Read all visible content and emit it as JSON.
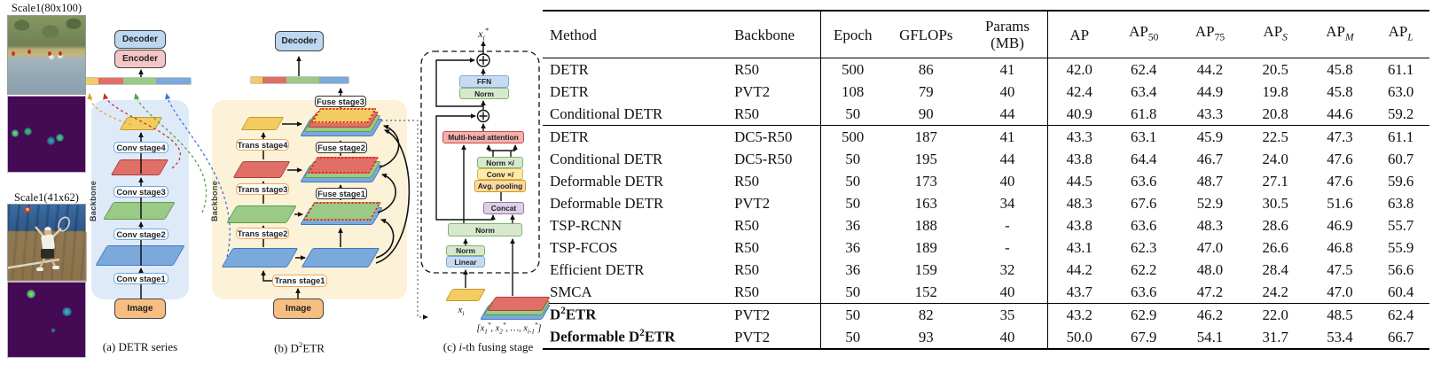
{
  "figure": {
    "examples": [
      {
        "label": "Scale1(80x100)"
      },
      {
        "label": "Scale1(41x62)"
      }
    ],
    "diagram_a": {
      "caption": "(a) DETR series",
      "decoder": "Decoder",
      "encoder": "Encoder",
      "backbone": "Backbone",
      "stages": [
        "Conv stage4",
        "Conv stage3",
        "Conv stage2",
        "Conv stage1"
      ],
      "image": "Image"
    },
    "diagram_b": {
      "caption": [
        "(b) D",
        {
          "sup": "2"
        },
        "ETR"
      ],
      "decoder": "Decoder",
      "backbone": "Backbone",
      "trans_stages": [
        "Trans stage4",
        "Trans stage3",
        "Trans stage2",
        "Trans stage1"
      ],
      "fuse_stages": [
        "Fuse stage3",
        "Fuse stage2",
        "Fuse stage1"
      ],
      "image": "Image"
    },
    "diagram_c": {
      "caption": [
        "(c) ",
        {
          "i": "i"
        },
        "-th fusing stage"
      ],
      "output": [
        {
          "i": "x"
        },
        {
          "sub": "i",
          "i": true
        },
        {
          "sup": "*"
        }
      ],
      "ffn": "FFN",
      "norm": "Norm",
      "mha": "Multi-head attention",
      "norm_i": [
        "Norm × ",
        {
          "i": "i"
        }
      ],
      "conv_i": [
        "Conv × ",
        {
          "i": "i"
        }
      ],
      "avg": "Avg. pooling",
      "concat": "Concat",
      "norm_wide": "Norm",
      "norm2": "Norm",
      "linear": "Linear",
      "input": [
        {
          "i": "x"
        },
        {
          "sub": "i",
          "i": true
        }
      ],
      "stack": [
        "[",
        {
          "i": "x"
        },
        {
          "sub": "1"
        },
        {
          "sup": "*"
        },
        ", ",
        {
          "i": "x"
        },
        {
          "sub": "2"
        },
        {
          "sup": "*"
        },
        ", …, ",
        {
          "i": "x"
        },
        {
          "sub": "i-1",
          "i": true
        },
        {
          "sup": "*"
        },
        "]"
      ]
    },
    "colors": {
      "yellow": "#F2CC60",
      "red": "#E06F68",
      "green": "#9BC986",
      "blue": "#7BA9DC",
      "panel_a_bg": "#DEEAF8",
      "panel_b_bg": "#FBF2D8",
      "heatmap_bg": "#440A54"
    }
  },
  "table": {
    "headers": [
      {
        "name": "method",
        "label": "Method"
      },
      {
        "name": "backbone",
        "label": "Backbone"
      },
      {
        "name": "epoch",
        "label": "Epoch"
      },
      {
        "name": "gflops",
        "label": "GFLOPs"
      },
      {
        "name": "params",
        "label": [
          "Params",
          {
            "br": true
          },
          "(MB)"
        ]
      },
      {
        "name": "ap",
        "label": "AP"
      },
      {
        "name": "ap50",
        "label": [
          "AP",
          {
            "sub": "50"
          }
        ]
      },
      {
        "name": "ap75",
        "label": [
          "AP",
          {
            "sub": "75"
          }
        ]
      },
      {
        "name": "aps",
        "label": [
          "AP",
          {
            "sub": "S",
            "i": true
          }
        ]
      },
      {
        "name": "apm",
        "label": [
          "AP",
          {
            "sub": "M",
            "i": true
          }
        ]
      },
      {
        "name": "apl",
        "label": [
          "AP",
          {
            "sub": "L",
            "i": true
          }
        ]
      }
    ],
    "groups": [
      {
        "rows": [
          {
            "cells": [
              "DETR",
              "R50",
              "500",
              "86",
              "41",
              "42.0",
              "62.4",
              "44.2",
              "20.5",
              "45.8",
              "61.1"
            ]
          },
          {
            "cells": [
              "DETR",
              "PVT2",
              "108",
              "79",
              "40",
              "42.4",
              "63.4",
              "44.9",
              "19.8",
              "45.8",
              "63.0"
            ]
          },
          {
            "cells": [
              "Conditional DETR",
              "R50",
              "50",
              "90",
              "44",
              "40.9",
              "61.8",
              "43.3",
              "20.8",
              "44.6",
              "59.2"
            ]
          }
        ]
      },
      {
        "rows": [
          {
            "cells": [
              "DETR",
              "DC5-R50",
              "500",
              "187",
              "41",
              "43.3",
              "63.1",
              "45.9",
              "22.5",
              "47.3",
              "61.1"
            ]
          },
          {
            "cells": [
              "Conditional DETR",
              "DC5-R50",
              "50",
              "195",
              "44",
              "43.8",
              "64.4",
              "46.7",
              "24.0",
              "47.6",
              "60.7"
            ]
          },
          {
            "cells": [
              "Deformable DETR",
              "R50",
              "50",
              "173",
              "40",
              "44.5",
              "63.6",
              "48.7",
              "27.1",
              "47.6",
              "59.6"
            ]
          },
          {
            "cells": [
              "Deformable DETR",
              "PVT2",
              "50",
              "163",
              "34",
              "48.3",
              "67.6",
              "52.9",
              "30.5",
              "51.6",
              "63.8"
            ]
          },
          {
            "cells": [
              "TSP-RCNN",
              "R50",
              "36",
              "188",
              "-",
              "43.8",
              "63.6",
              "48.3",
              "28.6",
              "46.9",
              "55.7"
            ]
          },
          {
            "cells": [
              "TSP-FCOS",
              "R50",
              "36",
              "189",
              "-",
              "43.1",
              "62.3",
              "47.0",
              "26.6",
              "46.8",
              "55.9"
            ]
          },
          {
            "cells": [
              "Efficient DETR",
              "R50",
              "36",
              "159",
              "32",
              "44.2",
              "62.2",
              "48.0",
              "28.4",
              "47.5",
              "56.6"
            ]
          },
          {
            "cells": [
              "SMCA",
              "R50",
              "50",
              "152",
              "40",
              "43.7",
              "63.6",
              "47.2",
              "24.2",
              "47.0",
              "60.4"
            ]
          }
        ]
      },
      {
        "rows": [
          {
            "bold": true,
            "cells": [
              [
                "D",
                {
                  "sup": "2"
                },
                "ETR"
              ],
              "PVT2",
              "50",
              "82",
              "35",
              "43.2",
              "62.9",
              "46.2",
              "22.0",
              "48.5",
              "62.4"
            ]
          },
          {
            "bold": true,
            "cells": [
              [
                "Deformable D",
                {
                  "sup": "2"
                },
                "ETR"
              ],
              "PVT2",
              "50",
              "93",
              "40",
              "50.0",
              "67.9",
              "54.1",
              "31.7",
              "53.4",
              "66.7"
            ]
          }
        ]
      }
    ]
  }
}
